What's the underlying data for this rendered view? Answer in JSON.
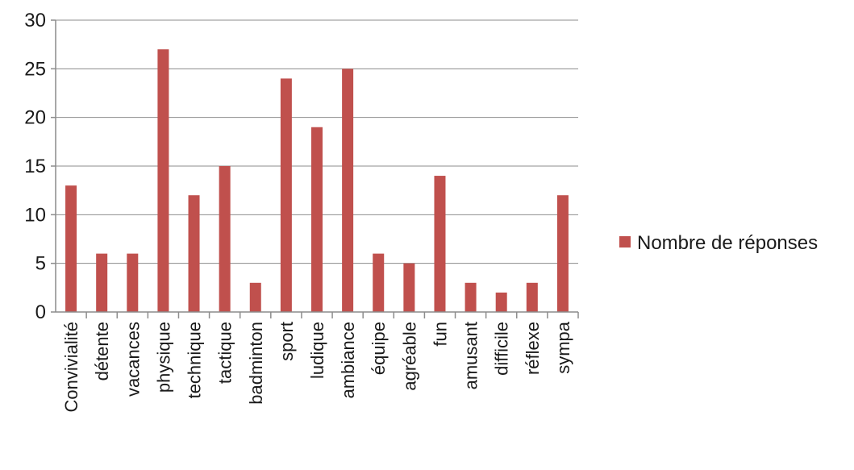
{
  "chart_data": {
    "type": "bar",
    "categories": [
      "Convivialité",
      "détente",
      "vacances",
      "physique",
      "technique",
      "tactique",
      "badminton",
      "sport",
      "ludique",
      "ambiance",
      "équipe",
      "agréable",
      "fun",
      "amusant",
      "difficile",
      "réflexe",
      "sympa"
    ],
    "series": [
      {
        "name": "Nombre de réponses",
        "color": "#c0504d",
        "values": [
          13,
          6,
          6,
          27,
          12,
          15,
          3,
          24,
          19,
          25,
          6,
          5,
          14,
          3,
          2,
          3,
          12
        ]
      }
    ],
    "yticks": [
      "0",
      "5",
      "10",
      "15",
      "20",
      "25",
      "30"
    ],
    "ylim": [
      0,
      30
    ],
    "grid": true,
    "legend_position": "right"
  }
}
